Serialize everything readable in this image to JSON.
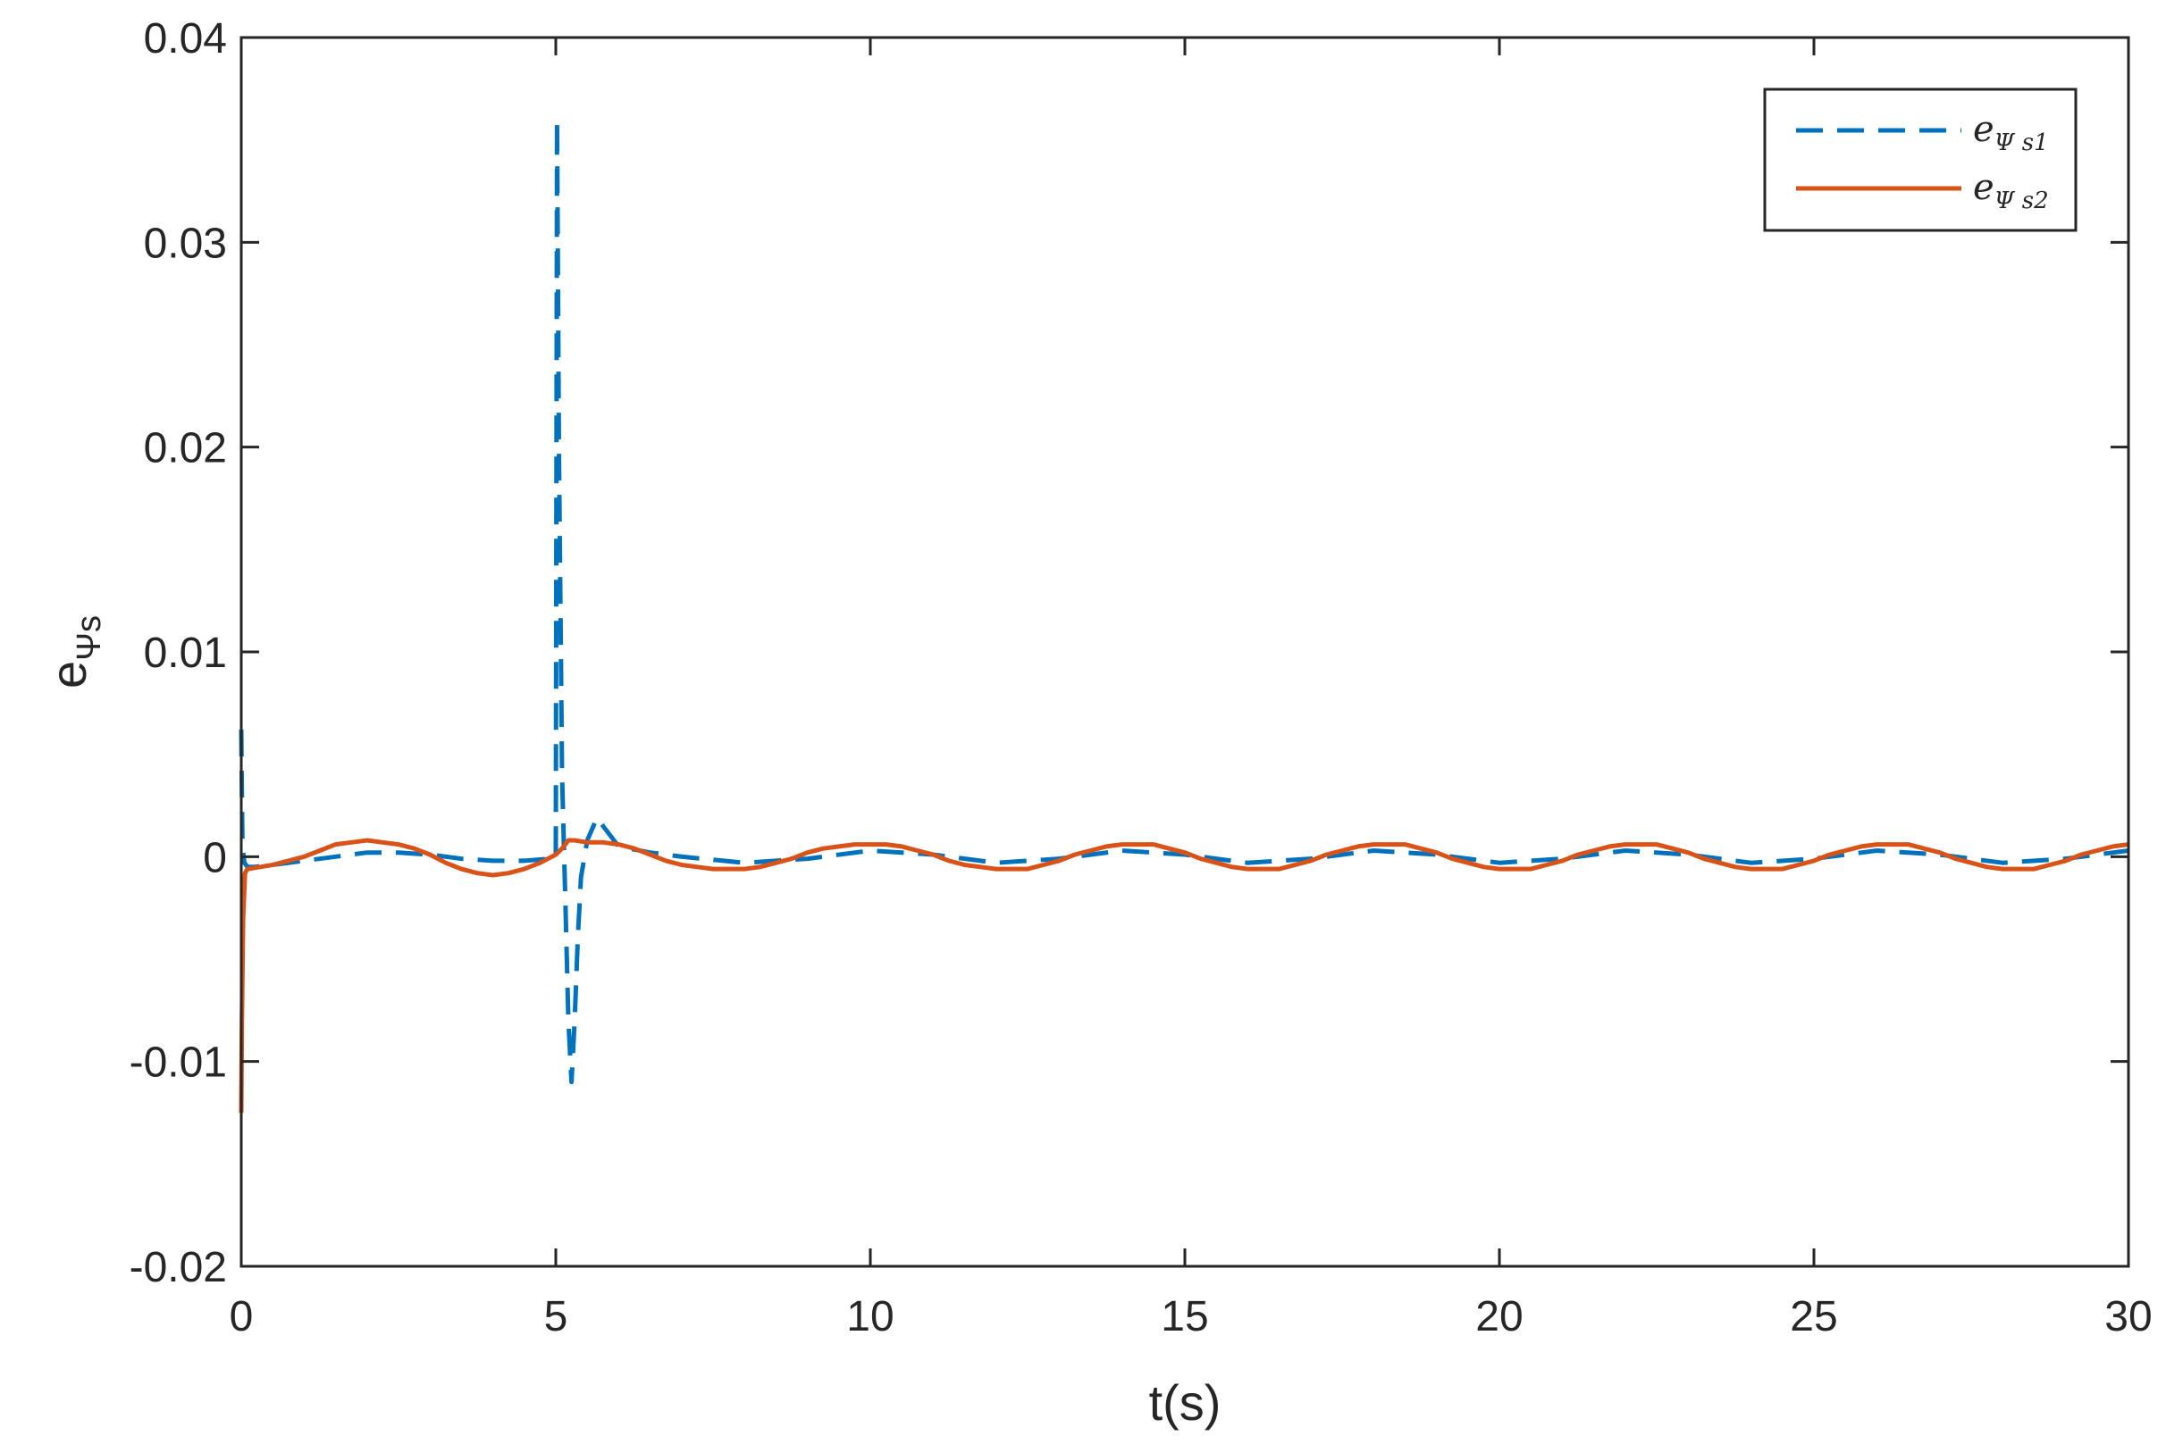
{
  "chart_data": {
    "type": "line",
    "title": "",
    "xlabel": "t(s)",
    "ylabel": {
      "base": "e",
      "sub": "Ψs"
    },
    "xlim": [
      0,
      30
    ],
    "ylim": [
      -0.02,
      0.04
    ],
    "xticks": [
      0,
      5,
      10,
      15,
      20,
      25,
      30
    ],
    "xtick_labels": [
      "0",
      "5",
      "10",
      "15",
      "20",
      "25",
      "30"
    ],
    "yticks": [
      -0.02,
      -0.01,
      0,
      0.01,
      0.02,
      0.03,
      0.04
    ],
    "ytick_labels": [
      "-0.02",
      "-0.01",
      "0",
      "0.01",
      "0.02",
      "0.03",
      "0.04"
    ],
    "grid": false,
    "legend_position": "top-right",
    "series": [
      {
        "name": "e_Ψs1",
        "legend_base": "e",
        "legend_sub": "Ψ s1",
        "color": "#0072BD",
        "style": "dashed",
        "x": [
          0,
          0.01,
          0.02,
          0.05,
          0.1,
          0.2,
          0.5,
          1,
          1.5,
          2,
          2.5,
          3,
          3.5,
          4,
          4.5,
          4.9,
          5.0,
          5.02,
          5.05,
          5.1,
          5.15,
          5.2,
          5.25,
          5.3,
          5.35,
          5.4,
          5.5,
          5.6,
          5.65,
          6,
          6.5,
          7,
          8,
          9,
          10,
          11,
          12,
          13,
          14,
          15,
          16,
          17,
          18,
          19,
          20,
          21,
          22,
          23,
          24,
          25,
          26,
          27,
          28,
          29,
          30
        ],
        "y": [
          0.0062,
          0.003,
          0.0005,
          -0.0003,
          -0.0005,
          -0.0005,
          -0.0004,
          -0.0002,
          0.0,
          0.0002,
          0.0002,
          0.0001,
          -0.0001,
          -0.0002,
          -0.0002,
          -0.0001,
          0.0,
          0.036,
          0.02,
          0.004,
          -0.002,
          -0.008,
          -0.011,
          -0.008,
          -0.004,
          -0.001,
          0.0008,
          0.0015,
          0.0019,
          0.0005,
          0.0002,
          0.0,
          -0.0003,
          -0.0001,
          0.0003,
          0.0001,
          -0.0003,
          -0.0001,
          0.0003,
          0.0001,
          -0.0003,
          -0.0001,
          0.0003,
          0.0001,
          -0.0003,
          -0.0001,
          0.0003,
          0.0001,
          -0.0003,
          -0.0001,
          0.0003,
          0.0001,
          -0.0003,
          -0.0001,
          0.0003
        ]
      },
      {
        "name": "e_Ψs2",
        "legend_base": "e",
        "legend_sub": "Ψ s2",
        "color": "#D95319",
        "style": "solid",
        "x": [
          0,
          0.01,
          0.03,
          0.06,
          0.1,
          0.3,
          0.5,
          0.75,
          1,
          1.25,
          1.5,
          1.75,
          2,
          2.25,
          2.5,
          2.75,
          3,
          3.25,
          3.5,
          3.75,
          4,
          4.25,
          4.5,
          4.75,
          5,
          5.1,
          5.2,
          5.3,
          5.5,
          5.75,
          6,
          6.25,
          6.5,
          6.75,
          7,
          7.25,
          7.5,
          7.75,
          8,
          8.25,
          8.5,
          8.75,
          9,
          9.25,
          9.5,
          9.75,
          10,
          10.25,
          10.5,
          10.75,
          11,
          11.25,
          11.5,
          11.75,
          12,
          12.25,
          12.5,
          12.75,
          13,
          13.25,
          13.5,
          13.75,
          14,
          14.25,
          14.5,
          14.75,
          15,
          15.25,
          15.5,
          15.75,
          16,
          16.25,
          16.5,
          16.75,
          17,
          17.25,
          17.5,
          17.75,
          18,
          18.25,
          18.5,
          18.75,
          19,
          19.25,
          19.5,
          19.75,
          20,
          20.25,
          20.5,
          20.75,
          21,
          21.25,
          21.5,
          21.75,
          22,
          22.25,
          22.5,
          22.75,
          23,
          23.25,
          23.5,
          23.75,
          24,
          24.25,
          24.5,
          24.75,
          25,
          25.25,
          25.5,
          25.75,
          26,
          26.25,
          26.5,
          26.75,
          27,
          27.25,
          27.5,
          27.75,
          28,
          28.25,
          28.5,
          28.75,
          29,
          29.25,
          29.5,
          29.75,
          30
        ],
        "y": [
          -0.0125,
          -0.008,
          -0.003,
          -0.0008,
          -0.0006,
          -0.0005,
          -0.0004,
          -0.0002,
          0.0,
          0.0003,
          0.0006,
          0.0007,
          0.0008,
          0.0007,
          0.0006,
          0.0004,
          0.0001,
          -0.0003,
          -0.0006,
          -0.0008,
          -0.0009,
          -0.0008,
          -0.0006,
          -0.0003,
          0.0001,
          0.0004,
          0.0008,
          0.0008,
          0.0007,
          0.0007,
          0.0006,
          0.0004,
          0.0001,
          -0.0002,
          -0.0004,
          -0.0005,
          -0.0006,
          -0.0006,
          -0.0006,
          -0.0005,
          -0.0003,
          -0.0001,
          0.0002,
          0.0004,
          0.0005,
          0.0006,
          0.0006,
          0.0006,
          0.0005,
          0.0003,
          0.0001,
          -0.0002,
          -0.0004,
          -0.0005,
          -0.0006,
          -0.0006,
          -0.0006,
          -0.0004,
          -0.0002,
          0.0001,
          0.0003,
          0.0005,
          0.0006,
          0.0006,
          0.0006,
          0.0004,
          0.0002,
          -0.0001,
          -0.0003,
          -0.0005,
          -0.0006,
          -0.0006,
          -0.0006,
          -0.0004,
          -0.0002,
          0.0001,
          0.0003,
          0.0005,
          0.0006,
          0.0006,
          0.0006,
          0.0004,
          0.0002,
          -0.0001,
          -0.0003,
          -0.0005,
          -0.0006,
          -0.0006,
          -0.0006,
          -0.0004,
          -0.0002,
          0.0001,
          0.0003,
          0.0005,
          0.0006,
          0.0006,
          0.0006,
          0.0004,
          0.0002,
          -0.0001,
          -0.0003,
          -0.0005,
          -0.0006,
          -0.0006,
          -0.0006,
          -0.0004,
          -0.0002,
          0.0001,
          0.0003,
          0.0005,
          0.0006,
          0.0006,
          0.0006,
          0.0004,
          0.0002,
          -0.0001,
          -0.0003,
          -0.0005,
          -0.0006,
          -0.0006,
          -0.0006,
          -0.0004,
          -0.0002,
          0.0001,
          0.0003,
          0.0005,
          0.0006
        ]
      }
    ]
  }
}
